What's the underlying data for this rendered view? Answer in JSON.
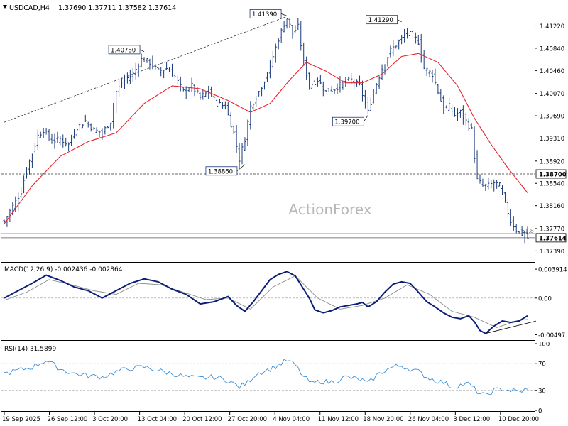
{
  "header": {
    "symbol": "USDCAD,H4",
    "ohlc": "1.37690 1.37711 1.37582 1.37614",
    "watermark": "ActionForex"
  },
  "colors": {
    "bars": "#1a3a7a",
    "moving_average": "#e8232a",
    "macd_line": "#0a1e78",
    "signal_line": "#8a8a8a",
    "rsi_line": "#3c8fd6",
    "dashed_levels": "#333333",
    "last_price_badge_bg": "#ffffff"
  },
  "chart_data": [
    {
      "type": "ohlc",
      "panel": "price",
      "title": "USDCAD,H4",
      "y_ticks": [
        "1.41220",
        "1.40840",
        "1.40460",
        "1.40070",
        "1.39690",
        "1.39310",
        "1.38920",
        "1.38540",
        "1.38160",
        "1.37770",
        "1.37390"
      ],
      "ylim": [
        1.3725,
        1.416
      ],
      "x_tick_labels": [
        "19 Sep 2025",
        "26 Sep 12:00",
        "3 Oct 20:00",
        "13 Oct 04:00",
        "20 Oct 12:00",
        "27 Oct 20:00",
        "4 Nov 04:00",
        "11 Nov 12:00",
        "18 Nov 20:00",
        "26 Nov 04:00",
        "3 Dec 12:00",
        "10 Dec 20:00"
      ],
      "close_path": [
        [
          0,
          1.379
        ],
        [
          3,
          1.3815
        ],
        [
          6,
          1.384
        ],
        [
          8,
          1.388
        ],
        [
          10,
          1.3905
        ],
        [
          12,
          1.3935
        ],
        [
          14,
          1.3945
        ],
        [
          17,
          1.3925
        ],
        [
          20,
          1.393
        ],
        [
          23,
          1.392
        ],
        [
          26,
          1.395
        ],
        [
          29,
          1.396
        ],
        [
          32,
          1.3945
        ],
        [
          35,
          1.394
        ],
        [
          38,
          1.396
        ],
        [
          40,
          1.401
        ],
        [
          43,
          1.403
        ],
        [
          46,
          1.404
        ],
        [
          49,
          1.4065
        ],
        [
          52,
          1.406
        ],
        [
          55,
          1.4045
        ],
        [
          58,
          1.405
        ],
        [
          61,
          1.4035
        ],
        [
          64,
          1.401
        ],
        [
          67,
          1.402
        ],
        [
          70,
          1.4
        ],
        [
          73,
          1.401
        ],
        [
          76,
          1.399
        ],
        [
          79,
          1.3985
        ],
        [
          82,
          1.394
        ],
        [
          84,
          1.3895
        ],
        [
          86,
          1.393
        ],
        [
          88,
          1.3985
        ],
        [
          91,
          1.401
        ],
        [
          94,
          1.404
        ],
        [
          96,
          1.407
        ],
        [
          98,
          1.41
        ],
        [
          100,
          1.4125
        ],
        [
          101,
          1.4135
        ],
        [
          103,
          1.411
        ],
        [
          105,
          1.412
        ],
        [
          107,
          1.406
        ],
        [
          109,
          1.402
        ],
        [
          112,
          1.403
        ],
        [
          115,
          1.401
        ],
        [
          118,
          1.4015
        ],
        [
          121,
          1.4025
        ],
        [
          124,
          1.403
        ],
        [
          127,
          1.402
        ],
        [
          129,
          1.399
        ],
        [
          130,
          1.3975
        ],
        [
          132,
          1.401
        ],
        [
          135,
          1.405
        ],
        [
          138,
          1.408
        ],
        [
          141,
          1.4095
        ],
        [
          144,
          1.411
        ],
        [
          146,
          1.4105
        ],
        [
          148,
          1.4095
        ],
        [
          150,
          1.405
        ],
        [
          153,
          1.404
        ],
        [
          155,
          1.401
        ],
        [
          157,
          1.398
        ],
        [
          159,
          1.3985
        ],
        [
          161,
          1.397
        ],
        [
          163,
          1.3975
        ],
        [
          165,
          1.396
        ],
        [
          167,
          1.3945
        ],
        [
          168,
          1.39
        ],
        [
          169,
          1.386
        ],
        [
          171,
          1.385
        ],
        [
          173,
          1.385
        ],
        [
          175,
          1.3855
        ],
        [
          177,
          1.385
        ],
        [
          179,
          1.382
        ],
        [
          181,
          1.379
        ],
        [
          183,
          1.3775
        ],
        [
          185,
          1.3768
        ],
        [
          187,
          1.3761
        ]
      ],
      "series": [
        {
          "name": "moving_average",
          "values": [
            [
              0,
              1.3785
            ],
            [
              10,
              1.385
            ],
            [
              20,
              1.39
            ],
            [
              30,
              1.3925
            ],
            [
              40,
              1.394
            ],
            [
              50,
              1.399
            ],
            [
              60,
              1.402
            ],
            [
              70,
              1.4015
            ],
            [
              80,
              1.3995
            ],
            [
              88,
              1.3975
            ],
            [
              95,
              1.399
            ],
            [
              102,
              1.403
            ],
            [
              108,
              1.406
            ],
            [
              115,
              1.4045
            ],
            [
              122,
              1.4025
            ],
            [
              128,
              1.4025
            ],
            [
              135,
              1.404
            ],
            [
              142,
              1.407
            ],
            [
              148,
              1.4075
            ],
            [
              155,
              1.406
            ],
            [
              162,
              1.402
            ],
            [
              168,
              1.3965
            ],
            [
              174,
              1.392
            ],
            [
              180,
              1.388
            ],
            [
              185,
              1.385
            ],
            [
              187,
              1.3838
            ]
          ]
        }
      ],
      "xlim": [
        0,
        187
      ],
      "annotations": [
        {
          "label": "1.40780",
          "bar": 50
        },
        {
          "label": "1.41390",
          "bar": 101
        },
        {
          "label": "1.41290",
          "bar": 142
        },
        {
          "label": "1.39700",
          "bar": 130
        },
        {
          "label": "1.38860",
          "bar": 86
        }
      ],
      "levels": [
        {
          "label": "1.38700",
          "value": 1.387,
          "style": "dashed"
        },
        {
          "label": "1.37614",
          "value": 1.37614,
          "style": "solid-last-price"
        }
      ],
      "fib_label": "61.8",
      "trendline": {
        "from": [
          0,
          1.3958
        ],
        "to": [
          101,
          1.4138
        ]
      }
    },
    {
      "type": "line",
      "panel": "macd",
      "title": "MACD(12,26,9) -0.002436 -0.002864",
      "y_ticks": [
        "0.003914",
        "0.00",
        "-0.00497"
      ],
      "ylim": [
        -0.0056,
        0.0046
      ],
      "series": [
        {
          "name": "MACD",
          "values": [
            [
              0,
              0.0
            ],
            [
              6,
              0.0012
            ],
            [
              10,
              0.002
            ],
            [
              15,
              0.0031
            ],
            [
              20,
              0.0024
            ],
            [
              25,
              0.0015
            ],
            [
              30,
              0.001
            ],
            [
              35,
              0.0
            ],
            [
              40,
              0.001
            ],
            [
              45,
              0.002
            ],
            [
              50,
              0.0026
            ],
            [
              55,
              0.0022
            ],
            [
              60,
              0.0012
            ],
            [
              65,
              0.0005
            ],
            [
              70,
              -0.0008
            ],
            [
              75,
              -0.0005
            ],
            [
              80,
              0.0002
            ],
            [
              83,
              -0.001
            ],
            [
              86,
              -0.0018
            ],
            [
              89,
              -0.0005
            ],
            [
              92,
              0.001
            ],
            [
              95,
              0.0025
            ],
            [
              98,
              0.0032
            ],
            [
              101,
              0.0036
            ],
            [
              104,
              0.003
            ],
            [
              106,
              0.0018
            ],
            [
              109,
              0.0
            ],
            [
              111,
              -0.0016
            ],
            [
              114,
              -0.002
            ],
            [
              117,
              -0.0017
            ],
            [
              120,
              -0.0012
            ],
            [
              123,
              -0.001
            ],
            [
              126,
              -0.0008
            ],
            [
              128,
              -0.0006
            ],
            [
              130,
              -0.0012
            ],
            [
              133,
              -0.0005
            ],
            [
              136,
              0.0008
            ],
            [
              139,
              0.0019
            ],
            [
              142,
              0.0022
            ],
            [
              145,
              0.002
            ],
            [
              148,
              0.0008
            ],
            [
              151,
              -0.0005
            ],
            [
              154,
              -0.0012
            ],
            [
              157,
              -0.002
            ],
            [
              160,
              -0.0026
            ],
            [
              163,
              -0.0028
            ],
            [
              166,
              -0.0024
            ],
            [
              168,
              -0.0032
            ],
            [
              170,
              -0.0044
            ],
            [
              172,
              -0.0048
            ],
            [
              175,
              -0.0038
            ],
            [
              178,
              -0.0031
            ],
            [
              181,
              -0.0033
            ],
            [
              184,
              -0.0031
            ],
            [
              187,
              -0.0024
            ]
          ]
        },
        {
          "name": "Signal",
          "values": [
            [
              0,
              -0.0003
            ],
            [
              8,
              0.0008
            ],
            [
              16,
              0.0025
            ],
            [
              24,
              0.0018
            ],
            [
              32,
              0.001
            ],
            [
              40,
              0.0005
            ],
            [
              48,
              0.002
            ],
            [
              56,
              0.0018
            ],
            [
              64,
              0.0008
            ],
            [
              72,
              -0.0002
            ],
            [
              80,
              0.0
            ],
            [
              88,
              -0.0015
            ],
            [
              96,
              0.0015
            ],
            [
              104,
              0.003
            ],
            [
              112,
              0.0
            ],
            [
              120,
              -0.0015
            ],
            [
              128,
              -0.001
            ],
            [
              136,
              0.0
            ],
            [
              144,
              0.0018
            ],
            [
              152,
              0.0005
            ],
            [
              160,
              -0.0018
            ],
            [
              168,
              -0.0026
            ],
            [
              176,
              -0.004
            ],
            [
              184,
              -0.003
            ],
            [
              187,
              -0.0029
            ]
          ]
        }
      ],
      "xlim": [
        0,
        187
      ],
      "trendline": {
        "from": [
          172,
          -0.0048
        ],
        "to": [
          187,
          -0.0034
        ]
      }
    },
    {
      "type": "line",
      "panel": "rsi",
      "title": "RSI(14) 31.5899",
      "y_ticks": [
        "100",
        "70",
        "30",
        "0"
      ],
      "ylim": [
        0,
        100
      ],
      "levels": [
        70,
        30
      ],
      "series": [
        {
          "name": "RSI",
          "values": [
            [
              0,
              55
            ],
            [
              5,
              60
            ],
            [
              10,
              65
            ],
            [
              15,
              75
            ],
            [
              20,
              62
            ],
            [
              25,
              55
            ],
            [
              30,
              52
            ],
            [
              35,
              50
            ],
            [
              40,
              58
            ],
            [
              45,
              63
            ],
            [
              50,
              65
            ],
            [
              55,
              60
            ],
            [
              60,
              55
            ],
            [
              65,
              50
            ],
            [
              70,
              48
            ],
            [
              75,
              50
            ],
            [
              80,
              45
            ],
            [
              84,
              35
            ],
            [
              87,
              42
            ],
            [
              90,
              55
            ],
            [
              95,
              62
            ],
            [
              98,
              68
            ],
            [
              101,
              75
            ],
            [
              104,
              68
            ],
            [
              107,
              50
            ],
            [
              110,
              40
            ],
            [
              113,
              44
            ],
            [
              116,
              42
            ],
            [
              119,
              45
            ],
            [
              122,
              50
            ],
            [
              125,
              48
            ],
            [
              128,
              45
            ],
            [
              130,
              40
            ],
            [
              133,
              52
            ],
            [
              136,
              60
            ],
            [
              139,
              65
            ],
            [
              142,
              67
            ],
            [
              145,
              62
            ],
            [
              148,
              58
            ],
            [
              151,
              50
            ],
            [
              154,
              45
            ],
            [
              157,
              42
            ],
            [
              160,
              35
            ],
            [
              163,
              38
            ],
            [
              166,
              40
            ],
            [
              168,
              32
            ],
            [
              170,
              25
            ],
            [
              172,
              22
            ],
            [
              175,
              30
            ],
            [
              178,
              32
            ],
            [
              181,
              30
            ],
            [
              184,
              28
            ],
            [
              187,
              32
            ]
          ]
        }
      ],
      "xlim": [
        0,
        187
      ]
    }
  ]
}
